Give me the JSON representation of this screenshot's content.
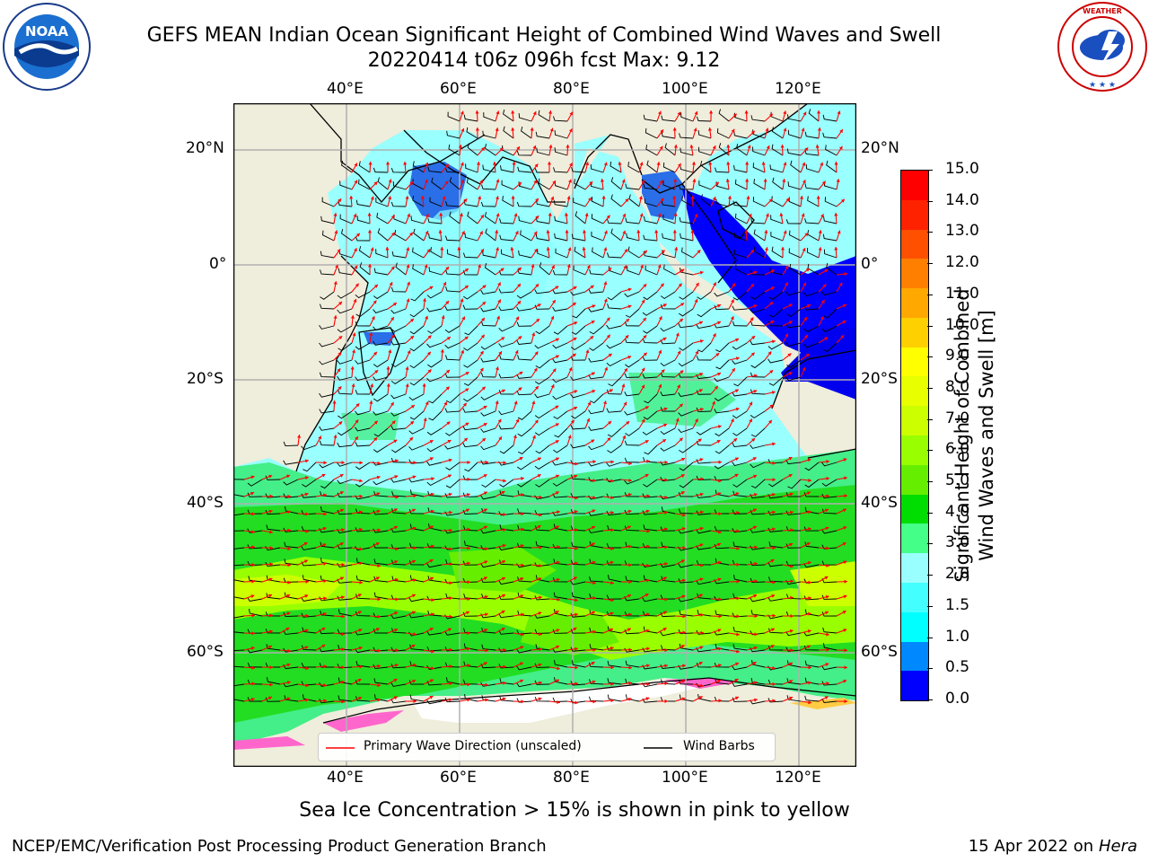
{
  "title": {
    "line1": "GEFS MEAN Indian Ocean Significant Height of Combined Wind Waves and Swell",
    "line2": "20220414 t06z 096h fcst   Max: 9.12"
  },
  "logos": {
    "left": {
      "text": "NOAA",
      "ring": "NATIONAL OCEANIC AND ATMOSPHERIC ADMINISTRATION · U.S. DEPARTMENT OF COMMERCE"
    },
    "right": {
      "ring": "NATIONAL WEATHER SERVICE"
    }
  },
  "map": {
    "lon_ticks": [
      "40°E",
      "60°E",
      "80°E",
      "100°E",
      "120°E"
    ],
    "lat_ticks": [
      "20°N",
      "0°",
      "20°S",
      "40°S",
      "60°S"
    ],
    "colors": {
      "land": "#efeddb",
      "coast": "#000000",
      "grid": "#b0b0b0",
      "arrow": "#ff0000",
      "barb": "#000000"
    }
  },
  "legend": {
    "primary_wave": "Primary Wave Direction (unscaled)",
    "wind_barbs": "Wind Barbs"
  },
  "colorbar": {
    "label_line1": "Significant Height of Combined",
    "label_line2": "Wind Waves and Swell [m]",
    "ticks": [
      "15.0",
      "14.0",
      "13.0",
      "12.0",
      "11.0",
      "10.0",
      "9.0",
      "8.0",
      "7.0",
      "6.0",
      "5.0",
      "4.0",
      "3.0",
      "2.0",
      "1.5",
      "1.0",
      "0.5",
      "0.0"
    ],
    "colors": [
      "#ff0000",
      "#ff2200",
      "#ff5000",
      "#ff8000",
      "#ffa800",
      "#ffd000",
      "#ffff00",
      "#e8ff00",
      "#ccff00",
      "#99ff00",
      "#66ee00",
      "#00dd00",
      "#44ff88",
      "#99ffff",
      "#44ffff",
      "#00ffff",
      "#0088ff",
      "#0000ff"
    ]
  },
  "caption": "Sea Ice Concentration > 15% is shown in pink to yellow",
  "footer": {
    "left": "NCEP/EMC/Verification Post Processing Product Generation Branch",
    "right_prefix": "15 Apr 2022 on ",
    "right_host": "Hera"
  }
}
